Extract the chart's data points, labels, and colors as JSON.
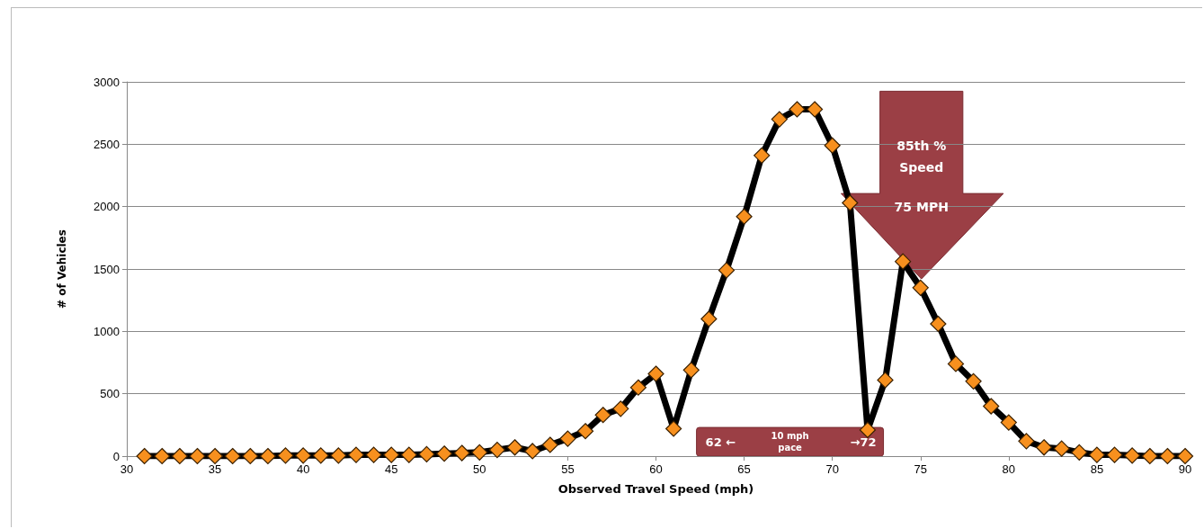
{
  "chart_data": {
    "type": "line",
    "xlabel": "Observed Travel Speed (mph)",
    "ylabel": "# of Vehicles",
    "x": [
      31,
      32,
      33,
      34,
      35,
      36,
      37,
      38,
      39,
      40,
      41,
      42,
      43,
      44,
      45,
      46,
      47,
      48,
      49,
      50,
      51,
      52,
      53,
      54,
      55,
      56,
      57,
      58,
      59,
      60,
      61,
      62,
      63,
      64,
      65,
      66,
      67,
      68,
      69,
      70,
      71,
      72,
      73,
      74,
      75,
      76,
      77,
      78,
      79,
      80,
      81,
      82,
      83,
      84,
      85,
      86,
      87,
      88,
      89,
      90
    ],
    "series": [
      {
        "color": "#f7901e",
        "values": [
          0,
          0,
          0,
          0,
          0,
          0,
          0,
          0,
          5,
          5,
          5,
          5,
          10,
          10,
          10,
          10,
          15,
          20,
          25,
          30,
          50,
          70,
          40,
          90,
          140,
          200,
          330,
          380,
          550,
          660,
          220,
          690,
          1100,
          1490,
          1920,
          2410,
          2700,
          2780,
          2780,
          2490,
          2030,
          210,
          610,
          1560,
          1350,
          1060,
          740,
          600,
          400,
          270,
          120,
          70,
          60,
          30,
          10,
          10,
          5,
          0,
          0,
          0
        ]
      }
    ],
    "xlim": [
      30,
      90
    ],
    "xticks": [
      30,
      35,
      40,
      45,
      50,
      55,
      60,
      65,
      70,
      75,
      80,
      85,
      90
    ],
    "ylim": [
      0,
      3000
    ],
    "yticks": [
      0,
      500,
      1000,
      1500,
      2000,
      2500,
      3000
    ],
    "grid": "y",
    "marker": "diamond",
    "line_style": "solid",
    "annotations": [
      "85th % Speed",
      "75 MPH",
      "62 ←",
      "10 mph pace",
      "→72"
    ]
  }
}
